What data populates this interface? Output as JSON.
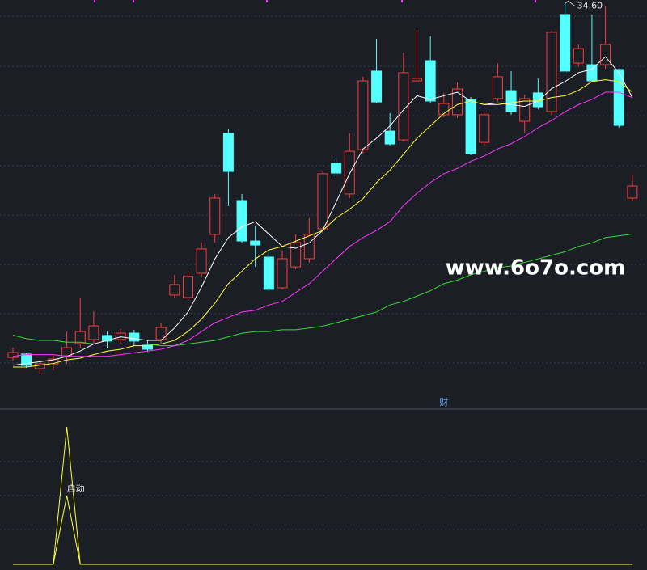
{
  "chart_data": [
    {
      "type": "candlestick",
      "ylim": [
        12,
        34.8
      ],
      "up_color": "#ff3b3b",
      "down_color": "#54ffff",
      "open": [
        14.64,
        14.83,
        14.01,
        14.28,
        14.74,
        15.42,
        15.65,
        15.88,
        15.65,
        16.01,
        15.33,
        15.65,
        18.16,
        18.02,
        19.39,
        21.58,
        27.28,
        23.49,
        21.21,
        20.3,
        18.57,
        19.75,
        20.21,
        21.9,
        25.59,
        23.86,
        26.36,
        30.79,
        27.41,
        26.91,
        30.24,
        31.38,
        28.33,
        28.33,
        29.19,
        26.77,
        29.24,
        29.69,
        27.96,
        29.56,
        28.51,
        33.98,
        31.24,
        31.15,
        31.15,
        30.88,
        23.63
      ],
      "high": [
        15.19,
        14.92,
        14.42,
        14.74,
        16.1,
        18.02,
        17.24,
        16.1,
        16.24,
        16.2,
        15.65,
        16.56,
        19.3,
        19.52,
        21.12,
        23.86,
        27.5,
        23.86,
        22.03,
        20.57,
        20.66,
        21.58,
        22.49,
        25.13,
        25.91,
        27.28,
        30.47,
        32.61,
        28.42,
        31.84,
        33.11,
        32.75,
        29.56,
        30.15,
        29.33,
        28.51,
        31.24,
        30.79,
        29.47,
        30.38,
        33.07,
        34.6,
        32.29,
        33.98,
        34.44,
        30.92,
        24.95
      ],
      "low": [
        14.46,
        14.05,
        13.73,
        13.92,
        14.28,
        15.19,
        15.42,
        15.19,
        15.42,
        15.28,
        14.96,
        15.42,
        18.02,
        17.93,
        19.21,
        21.12,
        23.17,
        21.12,
        19.75,
        18.38,
        18.48,
        19.62,
        19.98,
        21.67,
        24.86,
        23.63,
        26.14,
        28.96,
        26.59,
        26.82,
        30.15,
        28.96,
        28.19,
        28.14,
        26.05,
        26.59,
        29.1,
        28.33,
        27.28,
        28.64,
        28.33,
        30.7,
        31.06,
        30.15,
        30.92,
        27.6,
        23.49
      ],
      "close": [
        14.92,
        14.19,
        14.28,
        14.55,
        15.19,
        16.1,
        16.42,
        15.56,
        16.01,
        15.56,
        15.1,
        16.33,
        18.75,
        19.21,
        20.76,
        23.63,
        25.13,
        21.21,
        20.98,
        18.48,
        20.21,
        21.12,
        21.58,
        25.0,
        25.04,
        26.27,
        30.24,
        29.05,
        26.68,
        30.7,
        30.38,
        29.1,
        28.96,
        29.78,
        26.14,
        28.33,
        30.47,
        28.51,
        29.24,
        28.78,
        32.98,
        30.79,
        32.06,
        30.24,
        32.29,
        27.73,
        24.31
      ],
      "series": [
        {
          "color": "#ffffff",
          "values": [
            14.2,
            14.3,
            14.4,
            14.5,
            14.7,
            15.0,
            15.4,
            15.6,
            15.8,
            15.7,
            15.6,
            15.6,
            16.3,
            17.2,
            18.6,
            20.2,
            21.4,
            22.0,
            22.3,
            21.6,
            20.9,
            20.8,
            21.1,
            21.8,
            23.4,
            25.0,
            26.4,
            27.0,
            27.7,
            28.6,
            29.4,
            29.2,
            29.4,
            29.6,
            29.1,
            28.9,
            29.0,
            28.9,
            28.8,
            29.1,
            29.8,
            30.2,
            30.7,
            30.9,
            31.6,
            30.7,
            29.3
          ]
        },
        {
          "color": "#ffff33",
          "values": [
            14.1,
            14.1,
            14.2,
            14.3,
            14.5,
            14.6,
            14.8,
            15.0,
            15.1,
            15.3,
            15.3,
            15.4,
            15.6,
            16.1,
            16.8,
            17.7,
            18.8,
            19.5,
            20.2,
            20.7,
            20.9,
            21.2,
            21.5,
            21.8,
            22.5,
            23.0,
            23.6,
            24.5,
            25.2,
            26.1,
            27.0,
            27.7,
            28.4,
            28.9,
            29.1,
            28.9,
            28.9,
            29.0,
            29.1,
            29.1,
            29.3,
            29.4,
            29.7,
            30.2,
            30.3,
            30.2,
            29.6
          ]
        },
        {
          "color": "#ff33ff",
          "values": [
            14.7,
            14.8,
            14.8,
            14.8,
            14.7,
            14.7,
            14.7,
            14.7,
            14.8,
            14.9,
            15.0,
            15.1,
            15.3,
            15.6,
            16.1,
            16.6,
            16.9,
            17.2,
            17.3,
            17.6,
            17.8,
            18.3,
            18.8,
            19.5,
            20.2,
            20.9,
            21.4,
            21.8,
            22.3,
            23.2,
            23.9,
            24.5,
            25.0,
            25.3,
            25.7,
            26.0,
            26.4,
            26.7,
            27.1,
            27.6,
            28.0,
            28.5,
            28.9,
            29.2,
            29.6,
            29.6,
            29.3
          ]
        },
        {
          "color": "#33dd33",
          "values": [
            15.9,
            15.7,
            15.6,
            15.6,
            15.5,
            15.5,
            15.4,
            15.4,
            15.4,
            15.4,
            15.4,
            15.3,
            15.3,
            15.4,
            15.5,
            15.6,
            15.8,
            16.0,
            16.1,
            16.1,
            16.2,
            16.2,
            16.3,
            16.4,
            16.6,
            16.8,
            17.0,
            17.2,
            17.6,
            17.8,
            18.1,
            18.4,
            18.8,
            19.0,
            19.3,
            19.5,
            19.7,
            19.8,
            20.0,
            20.2,
            20.4,
            20.6,
            20.9,
            21.1,
            21.4,
            21.5,
            21.6
          ]
        }
      ],
      "annotations": [
        {
          "text": "34.60",
          "value": 34.6,
          "index": 41
        },
        {
          "text": "财",
          "index": 32
        }
      ],
      "watermark": "www.6o7o.com"
    },
    {
      "type": "line",
      "ylim": [
        0,
        1
      ],
      "series": [
        {
          "color": "#ffff33",
          "values": [
            0,
            0,
            0,
            0,
            1,
            0,
            0,
            0,
            0,
            0,
            0,
            0,
            0,
            0,
            0,
            0,
            0,
            0,
            0,
            0,
            0,
            0,
            0,
            0,
            0,
            0,
            0,
            0,
            0,
            0,
            0,
            0,
            0,
            0,
            0,
            0,
            0,
            0,
            0,
            0,
            0,
            0,
            0,
            0,
            0,
            0,
            0
          ]
        },
        {
          "color": "#ffff33",
          "values": [
            0,
            0,
            0,
            0,
            0.5,
            0,
            0,
            0,
            0,
            0,
            0,
            0,
            0,
            0,
            0,
            0,
            0,
            0,
            0,
            0,
            0,
            0,
            0,
            0,
            0,
            0,
            0,
            0,
            0,
            0,
            0,
            0,
            0,
            0,
            0,
            0,
            0,
            0,
            0,
            0,
            0,
            0,
            0,
            0,
            0,
            0,
            0
          ]
        }
      ],
      "annotations": [
        {
          "text": "启动",
          "index": 4
        }
      ]
    }
  ]
}
